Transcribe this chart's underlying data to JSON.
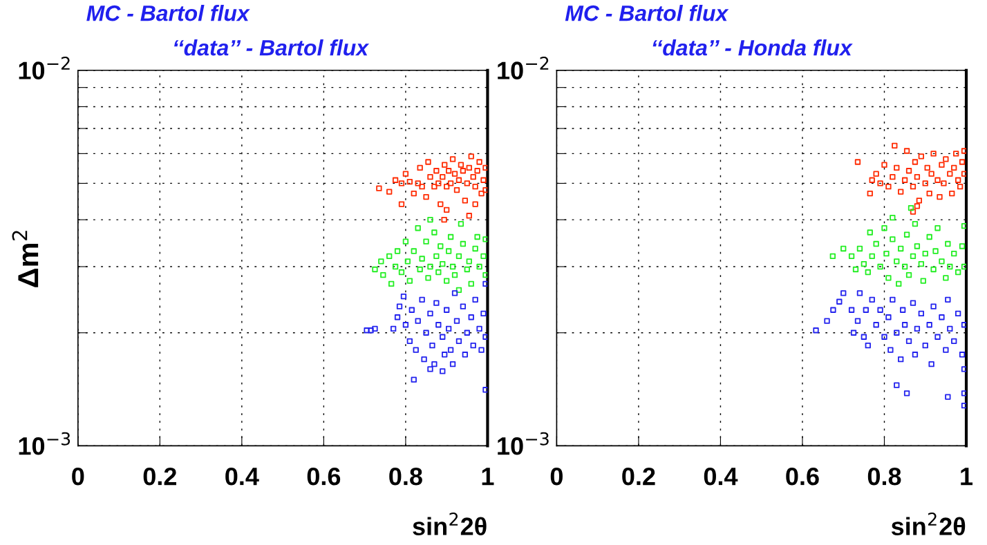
{
  "chart_data": [
    {
      "type": "scatter",
      "title": "MC - Bartol flux",
      "subtitle": "‘‘data’’ - Bartol flux",
      "xlabel": "sin$^{2}$2θ",
      "ylabel": "Δm$^{2}$",
      "log": "y",
      "grid": true,
      "marker": "square",
      "xlim": [
        0,
        1
      ],
      "xticks": [
        0,
        0.2,
        0.4,
        0.6,
        0.8,
        1
      ],
      "ylim": [
        0.001,
        0.01
      ],
      "yticks": [
        {
          "value": 0.001,
          "label": "10$^{−3}$"
        },
        {
          "value": 0.002,
          "label": null
        },
        {
          "value": 0.003,
          "label": null
        },
        {
          "value": 0.004,
          "label": null
        },
        {
          "value": 0.005,
          "label": null
        },
        {
          "value": 0.006,
          "label": null
        },
        {
          "value": 0.007,
          "label": null
        },
        {
          "value": 0.008,
          "label": null
        },
        {
          "value": 0.009,
          "label": null
        },
        {
          "value": 0.01,
          "label": "10$^{−2}$"
        }
      ],
      "series": [
        {
          "color": "#ff2a00",
          "x": [
            0.735,
            0.76,
            0.775,
            0.79,
            0.79,
            0.8,
            0.81,
            0.82,
            0.83,
            0.835,
            0.84,
            0.85,
            0.855,
            0.86,
            0.87,
            0.875,
            0.88,
            0.885,
            0.89,
            0.895,
            0.9,
            0.905,
            0.91,
            0.915,
            0.92,
            0.925,
            0.93,
            0.935,
            0.94,
            0.945,
            0.95,
            0.955,
            0.96,
            0.965,
            0.97,
            0.975,
            0.98,
            0.985,
            0.99,
            0.995,
            0.995,
            0.97,
            0.955,
            0.894,
            0.9
          ],
          "values": [
            0.00485,
            0.00475,
            0.0051,
            0.0044,
            0.005,
            0.0053,
            0.00505,
            0.0047,
            0.005,
            0.0055,
            0.0049,
            0.0046,
            0.0057,
            0.0052,
            0.0049,
            0.0054,
            0.005,
            0.0044,
            0.0052,
            0.0056,
            0.0049,
            0.0054,
            0.005,
            0.0058,
            0.0053,
            0.0048,
            0.0051,
            0.0056,
            0.0054,
            0.0045,
            0.005,
            0.0055,
            0.0059,
            0.0052,
            0.0049,
            0.0054,
            0.0057,
            0.0047,
            0.0051,
            0.0055,
            0.0048,
            0.0044,
            0.0041,
            0.004,
            0.00425
          ]
        },
        {
          "color": "#22ee22",
          "x": [
            0.725,
            0.74,
            0.745,
            0.76,
            0.765,
            0.775,
            0.78,
            0.79,
            0.8,
            0.805,
            0.81,
            0.82,
            0.83,
            0.835,
            0.84,
            0.85,
            0.855,
            0.86,
            0.87,
            0.875,
            0.88,
            0.885,
            0.89,
            0.9,
            0.905,
            0.91,
            0.915,
            0.92,
            0.93,
            0.935,
            0.94,
            0.95,
            0.955,
            0.96,
            0.97,
            0.975,
            0.98,
            0.99,
            0.995,
            0.995,
            0.86,
            0.93
          ],
          "values": [
            0.00295,
            0.0031,
            0.00285,
            0.0032,
            0.0027,
            0.003,
            0.0033,
            0.0029,
            0.0035,
            0.0031,
            0.00275,
            0.0033,
            0.0038,
            0.00295,
            0.00315,
            0.0035,
            0.0028,
            0.003,
            0.0037,
            0.0032,
            0.0029,
            0.0034,
            0.00305,
            0.00275,
            0.0033,
            0.0036,
            0.003,
            0.00285,
            0.0032,
            0.0039,
            0.00345,
            0.00295,
            0.0031,
            0.0027,
            0.00335,
            0.0036,
            0.003,
            0.0032,
            0.00285,
            0.00355,
            0.004,
            0.0026
          ]
        },
        {
          "color": "#2222ee",
          "x": [
            0.705,
            0.715,
            0.725,
            0.77,
            0.78,
            0.785,
            0.795,
            0.8,
            0.81,
            0.815,
            0.825,
            0.83,
            0.84,
            0.845,
            0.85,
            0.86,
            0.865,
            0.87,
            0.875,
            0.88,
            0.89,
            0.895,
            0.9,
            0.905,
            0.91,
            0.92,
            0.925,
            0.93,
            0.94,
            0.945,
            0.95,
            0.96,
            0.965,
            0.97,
            0.98,
            0.985,
            0.99,
            0.995,
            0.995,
            0.915,
            0.89,
            0.86,
            0.82,
            0.995
          ],
          "values": [
            0.00203,
            0.00203,
            0.00205,
            0.00205,
            0.0022,
            0.00235,
            0.0025,
            0.0021,
            0.0019,
            0.0023,
            0.0018,
            0.00215,
            0.00245,
            0.0017,
            0.002,
            0.00225,
            0.00185,
            0.00165,
            0.0024,
            0.0021,
            0.00195,
            0.00175,
            0.0023,
            0.00205,
            0.0018,
            0.00255,
            0.00215,
            0.0019,
            0.00235,
            0.00175,
            0.002,
            0.0022,
            0.00185,
            0.00245,
            0.00205,
            0.0018,
            0.00225,
            0.00195,
            0.0027,
            0.00165,
            0.00158,
            0.0016,
            0.0015,
            0.00141
          ]
        }
      ]
    },
    {
      "type": "scatter",
      "title": "MC - Bartol flux",
      "subtitle": "‘‘data’’ - Honda flux",
      "xlabel": "sin$^{2}$2θ",
      "log": "y",
      "grid": true,
      "marker": "square",
      "xlim": [
        0,
        1
      ],
      "xticks": [
        0,
        0.2,
        0.4,
        0.6,
        0.8,
        1
      ],
      "ylim": [
        0.001,
        0.01
      ],
      "yticks": [
        {
          "value": 0.001,
          "label": "10$^{−3}$"
        },
        {
          "value": 0.002,
          "label": null
        },
        {
          "value": 0.003,
          "label": null
        },
        {
          "value": 0.004,
          "label": null
        },
        {
          "value": 0.005,
          "label": null
        },
        {
          "value": 0.006,
          "label": null
        },
        {
          "value": 0.007,
          "label": null
        },
        {
          "value": 0.008,
          "label": null
        },
        {
          "value": 0.009,
          "label": null
        },
        {
          "value": 0.01,
          "label": "10$^{−2}$"
        }
      ],
      "series": [
        {
          "color": "#ff2a00",
          "x": [
            0.735,
            0.77,
            0.78,
            0.79,
            0.8,
            0.81,
            0.82,
            0.825,
            0.83,
            0.84,
            0.85,
            0.855,
            0.86,
            0.87,
            0.875,
            0.88,
            0.885,
            0.89,
            0.9,
            0.905,
            0.91,
            0.915,
            0.92,
            0.93,
            0.935,
            0.94,
            0.945,
            0.95,
            0.96,
            0.965,
            0.97,
            0.975,
            0.98,
            0.985,
            0.99,
            0.995,
            0.995,
            0.765,
            0.88,
            0.87
          ],
          "values": [
            0.0057,
            0.0051,
            0.0053,
            0.005,
            0.0056,
            0.0049,
            0.0052,
            0.0063,
            0.0055,
            0.00475,
            0.0051,
            0.0061,
            0.0054,
            0.0049,
            0.0057,
            0.0052,
            0.0045,
            0.0059,
            0.005,
            0.0055,
            0.0047,
            0.0053,
            0.006,
            0.0051,
            0.0046,
            0.0056,
            0.005,
            0.0058,
            0.0053,
            0.0047,
            0.0055,
            0.006,
            0.0051,
            0.0049,
            0.0057,
            0.0053,
            0.0061,
            0.0047,
            0.00435,
            0.0042
          ]
        },
        {
          "color": "#22ee22",
          "x": [
            0.674,
            0.7,
            0.72,
            0.73,
            0.74,
            0.75,
            0.76,
            0.765,
            0.77,
            0.78,
            0.79,
            0.8,
            0.805,
            0.81,
            0.82,
            0.83,
            0.835,
            0.84,
            0.85,
            0.855,
            0.86,
            0.87,
            0.875,
            0.88,
            0.89,
            0.895,
            0.9,
            0.91,
            0.92,
            0.925,
            0.93,
            0.94,
            0.95,
            0.955,
            0.96,
            0.97,
            0.98,
            0.99,
            0.995,
            0.995,
            0.865,
            0.82
          ],
          "values": [
            0.0032,
            0.00335,
            0.0032,
            0.00295,
            0.00335,
            0.00305,
            0.0029,
            0.0037,
            0.0032,
            0.00345,
            0.003,
            0.0038,
            0.00325,
            0.0028,
            0.00355,
            0.0031,
            0.0027,
            0.00335,
            0.003,
            0.00365,
            0.00285,
            0.0032,
            0.0039,
            0.0034,
            0.00305,
            0.00275,
            0.00325,
            0.0036,
            0.00295,
            0.0033,
            0.0038,
            0.0031,
            0.0028,
            0.00345,
            0.003,
            0.00325,
            0.0029,
            0.0034,
            0.003,
            0.00385,
            0.0043,
            0.00405
          ]
        },
        {
          "color": "#2222ee",
          "x": [
            0.633,
            0.66,
            0.675,
            0.69,
            0.7,
            0.72,
            0.725,
            0.735,
            0.74,
            0.75,
            0.755,
            0.76,
            0.77,
            0.78,
            0.79,
            0.8,
            0.81,
            0.815,
            0.82,
            0.83,
            0.84,
            0.845,
            0.85,
            0.86,
            0.87,
            0.875,
            0.88,
            0.89,
            0.9,
            0.91,
            0.915,
            0.92,
            0.93,
            0.94,
            0.95,
            0.955,
            0.96,
            0.97,
            0.98,
            0.99,
            0.995,
            0.995,
            0.83,
            0.855,
            0.955,
            0.995,
            0.995
          ],
          "values": [
            0.00203,
            0.00215,
            0.0023,
            0.00242,
            0.00255,
            0.0023,
            0.002,
            0.00215,
            0.00255,
            0.00195,
            0.0023,
            0.00185,
            0.00245,
            0.0021,
            0.0023,
            0.00195,
            0.0022,
            0.0018,
            0.00245,
            0.002,
            0.0017,
            0.0023,
            0.0021,
            0.0019,
            0.0024,
            0.00175,
            0.00205,
            0.00225,
            0.00185,
            0.0021,
            0.00165,
            0.00235,
            0.00195,
            0.0022,
            0.0018,
            0.00245,
            0.00205,
            0.0019,
            0.00225,
            0.00175,
            0.0021,
            0.0016,
            0.00145,
            0.00138,
            0.00135,
            0.00128,
            0.00138
          ]
        }
      ]
    }
  ]
}
